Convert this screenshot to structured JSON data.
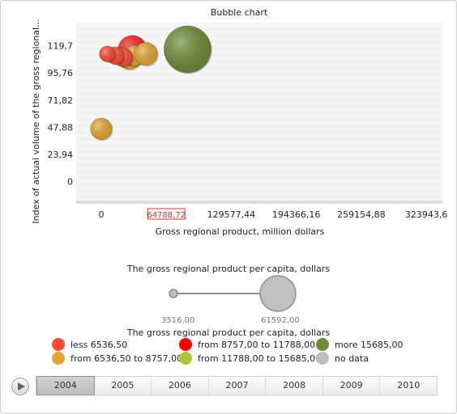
{
  "chart_data": {
    "type": "scatter",
    "title": "Bubble chart",
    "xlabel": "Gross regional product, million dollars",
    "ylabel": "Index of actual volume of the gross regional...",
    "x_ticks": [
      "0",
      "64788,72",
      "129577,44",
      "194366,16",
      "259154,88",
      "323943,6"
    ],
    "x_tick_values": [
      0,
      64788.72,
      129577.44,
      194366.16,
      259154.88,
      323943.6
    ],
    "y_ticks": [
      "0",
      "23,94",
      "47,88",
      "71,82",
      "95,76",
      "119,7"
    ],
    "y_tick_values": [
      0,
      23.94,
      47.88,
      71.82,
      95.76,
      119.7
    ],
    "xlim": [
      -25000,
      340000
    ],
    "ylim": [
      -18,
      140
    ],
    "highlighted_x_tick": "64788,72",
    "grid": true,
    "points": [
      {
        "x": 31000,
        "y": 116.2,
        "size": 23000,
        "color": "#ff2020"
      },
      {
        "x": 28000,
        "y": 109.0,
        "size": 15000,
        "color": "#e5a832"
      },
      {
        "x": 44500,
        "y": 112.5,
        "size": 15000,
        "color": "#e5a832"
      },
      {
        "x": 14000,
        "y": 111.0,
        "size": 8500,
        "color": "#ff4a33"
      },
      {
        "x": 22000,
        "y": 109.5,
        "size": 10000,
        "color": "#ff4a33"
      },
      {
        "x": 6000,
        "y": 112.5,
        "size": 7000,
        "color": "#ff4a33"
      },
      {
        "x": 33000,
        "y": 111.0,
        "size": 12000,
        "color": "#e5a832"
      },
      {
        "x": 0,
        "y": 46.5,
        "size": 13000,
        "color": "#e5a832"
      },
      {
        "x": 86000,
        "y": 116.5,
        "size": 61592,
        "color": "#6e8c37"
      }
    ]
  },
  "size_legend": {
    "title": "The gross regional product per capita, dollars",
    "min_label": "3516,00",
    "max_label": "61592,00",
    "min_value": 3516,
    "max_value": 61592
  },
  "color_legend": {
    "title": "The gross regional product per capita, dollars",
    "items": [
      {
        "label": "less 6536,50",
        "color": "#ff4a33"
      },
      {
        "label": "from 6536,50 to 8757,00",
        "color": "#e8a533"
      },
      {
        "label": "from 8757,00 to 11788,00",
        "color": "#ff0000"
      },
      {
        "label": "from 11788,00 to 15685,00",
        "color": "#a6c83a"
      },
      {
        "label": "more 15685,00",
        "color": "#6e8c37"
      },
      {
        "label": "no data",
        "color": "#bdbdbd"
      }
    ]
  },
  "timeline": {
    "years": [
      "2004",
      "2005",
      "2006",
      "2007",
      "2008",
      "2009",
      "2010"
    ],
    "selected": "2004"
  }
}
